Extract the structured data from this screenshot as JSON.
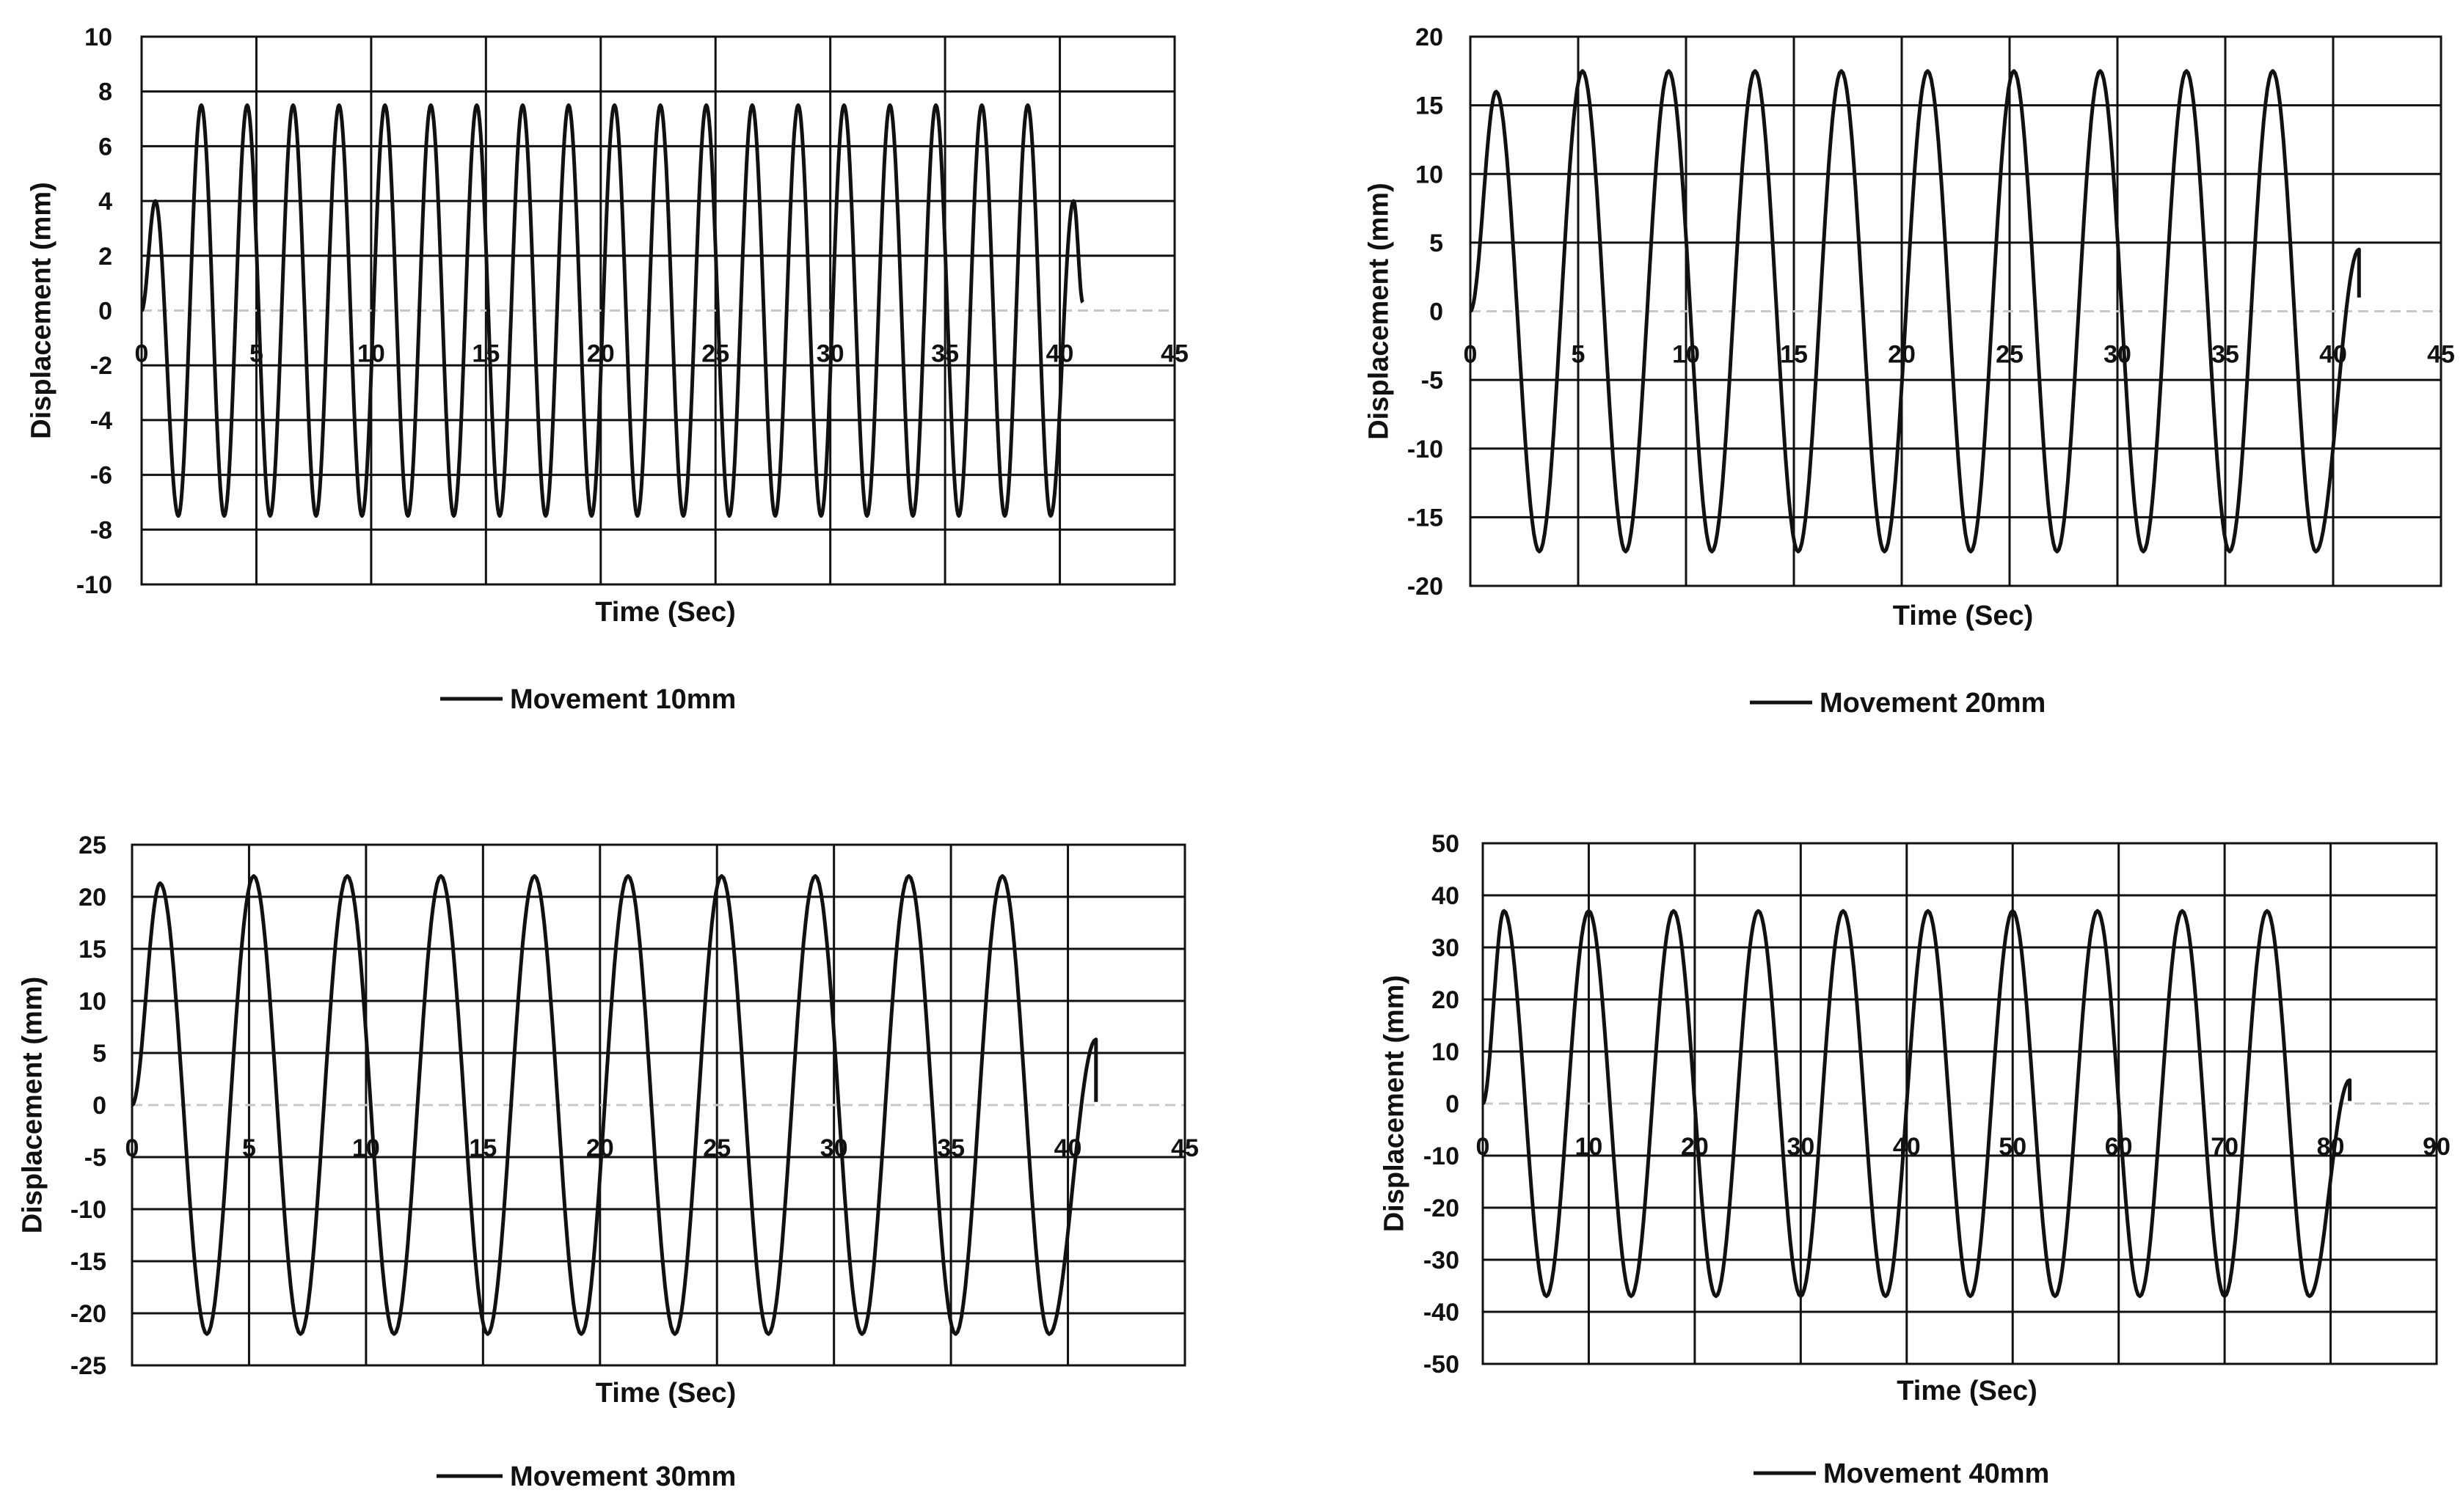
{
  "chart_data": [
    {
      "type": "line",
      "title": "",
      "xlabel": "Time (Sec)",
      "ylabel": "Displacement (mm)",
      "xlim": [
        0,
        45
      ],
      "ylim": [
        -10,
        10
      ],
      "x_ticks": [
        0,
        5,
        10,
        15,
        20,
        25,
        30,
        35,
        40,
        45
      ],
      "y_ticks": [
        -10,
        -8,
        -6,
        -4,
        -2,
        0,
        2,
        4,
        6,
        8,
        10
      ],
      "grid": true,
      "legend_position": "bottom",
      "series": [
        {
          "name": "Movement 10mm",
          "color": "#111111",
          "amplitude": 7.5,
          "first_peak": 4.0,
          "final_peak": 4.0,
          "final_value": 0.3,
          "cycles": 20,
          "duration": 41.0,
          "peak_times": [
            0.6,
            2.6,
            4.6,
            6.6,
            8.6,
            10.6,
            12.6,
            14.6,
            16.6,
            18.6,
            20.6,
            22.6,
            24.6,
            26.6,
            28.6,
            30.6,
            32.6,
            34.6,
            36.6,
            38.6,
            40.6
          ],
          "trough_times": [
            1.6,
            3.6,
            5.6,
            7.6,
            9.6,
            11.6,
            13.6,
            15.6,
            17.6,
            19.6,
            21.6,
            23.6,
            25.6,
            27.6,
            29.6,
            31.6,
            33.6,
            35.6,
            37.6,
            39.6
          ]
        }
      ]
    },
    {
      "type": "line",
      "title": "",
      "xlabel": "Time (Sec)",
      "ylabel": "Displacement (mm)",
      "xlim": [
        0,
        45
      ],
      "ylim": [
        -20,
        20
      ],
      "x_ticks": [
        0,
        5,
        10,
        15,
        20,
        25,
        30,
        35,
        40,
        45
      ],
      "y_ticks": [
        -20,
        -15,
        -10,
        -5,
        0,
        5,
        10,
        15,
        20
      ],
      "grid": true,
      "legend_position": "bottom",
      "series": [
        {
          "name": "Movement 20mm",
          "color": "#111111",
          "amplitude": 17.5,
          "first_peak": 16.0,
          "final_peak": 4.5,
          "final_value": 1.0,
          "cycles": 10,
          "duration": 41.2,
          "peak_times": [
            1.2,
            5.2,
            9.2,
            13.2,
            17.2,
            21.2,
            25.2,
            29.2,
            33.2,
            37.2,
            41.2
          ],
          "trough_times": [
            3.2,
            7.2,
            11.2,
            15.2,
            19.2,
            23.2,
            27.2,
            31.2,
            35.2,
            39.2
          ]
        }
      ]
    },
    {
      "type": "line",
      "title": "",
      "xlabel": "Time (Sec)",
      "ylabel": "Displacement (mm)",
      "xlim": [
        0,
        45
      ],
      "ylim": [
        -25,
        25
      ],
      "x_ticks": [
        0,
        5,
        10,
        15,
        20,
        25,
        30,
        35,
        40,
        45
      ],
      "y_ticks": [
        -25,
        -20,
        -15,
        -10,
        -5,
        0,
        5,
        10,
        15,
        20,
        25
      ],
      "grid": true,
      "legend_position": "bottom",
      "series": [
        {
          "name": "Movement 30mm",
          "color": "#111111",
          "amplitude": 22.0,
          "first_peak": 21.3,
          "final_peak": 6.3,
          "final_value": 0.3,
          "cycles": 10,
          "duration": 41.2,
          "peak_times": [
            1.2,
            5.2,
            9.2,
            13.2,
            17.2,
            21.2,
            25.2,
            29.2,
            33.2,
            37.2,
            41.2
          ],
          "trough_times": [
            3.2,
            7.2,
            11.2,
            15.2,
            19.2,
            23.2,
            27.2,
            31.2,
            35.2,
            39.2
          ]
        }
      ]
    },
    {
      "type": "line",
      "title": "",
      "xlabel": "Time (Sec)",
      "ylabel": "Displacement (mm)",
      "xlim": [
        0,
        90
      ],
      "ylim": [
        -50,
        50
      ],
      "x_ticks": [
        0,
        10,
        20,
        30,
        40,
        50,
        60,
        70,
        80,
        90
      ],
      "y_ticks": [
        -50,
        -40,
        -30,
        -20,
        -10,
        0,
        10,
        20,
        30,
        40,
        50
      ],
      "grid": true,
      "legend_position": "bottom",
      "series": [
        {
          "name": "Movement 40mm",
          "color": "#111111",
          "amplitude": 37.0,
          "first_peak": 37.0,
          "final_peak": 4.5,
          "final_value": 0.5,
          "cycles": 10,
          "duration": 81.8,
          "peak_times": [
            2.0,
            10.0,
            18.0,
            26.0,
            34.0,
            42.0,
            50.0,
            58.0,
            66.0,
            74.0,
            81.8
          ],
          "trough_times": [
            6.0,
            14.0,
            22.0,
            30.0,
            38.0,
            46.0,
            54.0,
            62.0,
            70.0,
            78.0
          ]
        }
      ]
    }
  ]
}
